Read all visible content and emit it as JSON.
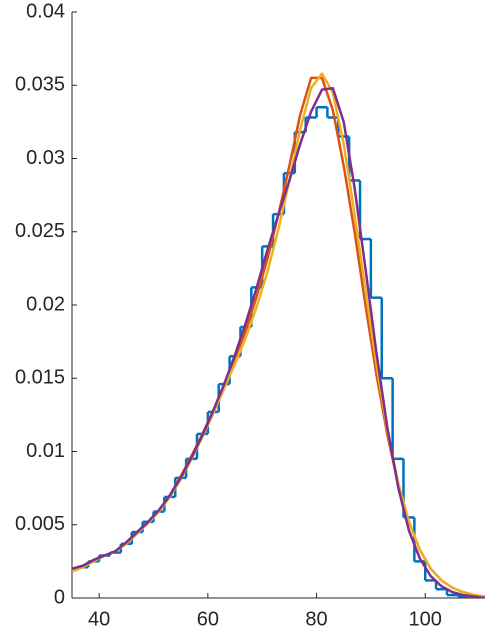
{
  "chart_data": {
    "type": "line",
    "x": [
      35,
      37,
      39,
      41,
      43,
      45,
      47,
      49,
      51,
      53,
      55,
      57,
      59,
      61,
      63,
      65,
      67,
      69,
      71,
      73,
      75,
      77,
      79,
      81,
      83,
      85,
      87,
      89,
      91,
      93,
      95,
      97,
      99,
      101,
      103,
      105,
      107,
      109,
      111
    ],
    "series": [
      {
        "color": "#0072BD",
        "style": "stairs",
        "values": [
          0.002,
          0.0021,
          0.0025,
          0.0029,
          0.0031,
          0.0037,
          0.0045,
          0.0052,
          0.0059,
          0.0069,
          0.0082,
          0.0095,
          0.0112,
          0.0127,
          0.0146,
          0.0165,
          0.0185,
          0.0212,
          0.024,
          0.0262,
          0.029,
          0.0318,
          0.0328,
          0.0335,
          0.0328,
          0.0315,
          0.0285,
          0.0245,
          0.0205,
          0.015,
          0.0095,
          0.0055,
          0.0025,
          0.0012,
          0.0006,
          0.0002,
          0.0001,
          0.0,
          0.0
        ]
      },
      {
        "color": "#D95319",
        "values": [
          0.002,
          0.0022,
          0.0026,
          0.0029,
          0.0032,
          0.0038,
          0.0045,
          0.0052,
          0.006,
          0.007,
          0.0083,
          0.0097,
          0.0112,
          0.0128,
          0.0145,
          0.0163,
          0.0183,
          0.0206,
          0.0232,
          0.0262,
          0.0295,
          0.033,
          0.0355,
          0.0355,
          0.0333,
          0.0295,
          0.025,
          0.02,
          0.0153,
          0.0112,
          0.0078,
          0.0052,
          0.0033,
          0.002,
          0.0012,
          0.0007,
          0.0004,
          0.0002,
          0.0001
        ]
      },
      {
        "color": "#EDB120",
        "values": [
          0.0018,
          0.0021,
          0.0025,
          0.0029,
          0.0032,
          0.0037,
          0.0044,
          0.0051,
          0.0059,
          0.0069,
          0.0081,
          0.0095,
          0.011,
          0.0126,
          0.0143,
          0.016,
          0.0178,
          0.0199,
          0.0223,
          0.0252,
          0.0285,
          0.032,
          0.0348,
          0.0358,
          0.0345,
          0.031,
          0.0262,
          0.021,
          0.016,
          0.0115,
          0.0079,
          0.0052,
          0.0033,
          0.002,
          0.0012,
          0.0007,
          0.0004,
          0.0002,
          0.0001
        ]
      },
      {
        "color": "#7E2F8E",
        "values": [
          0.002,
          0.0022,
          0.0026,
          0.0029,
          0.0032,
          0.0038,
          0.0045,
          0.0052,
          0.006,
          0.007,
          0.0082,
          0.0096,
          0.0111,
          0.0128,
          0.0146,
          0.0166,
          0.0188,
          0.0212,
          0.0238,
          0.0262,
          0.0285,
          0.031,
          0.0332,
          0.0347,
          0.0348,
          0.0325,
          0.028,
          0.0225,
          0.0168,
          0.0117,
          0.0076,
          0.0046,
          0.0027,
          0.0015,
          0.0008,
          0.0004,
          0.0002,
          0.0001,
          0.0
        ]
      }
    ],
    "xlim": [
      35,
      111
    ],
    "xticks": [
      40,
      60,
      80,
      100
    ],
    "ylim": [
      0,
      0.04
    ],
    "yticks": [
      0,
      0.005,
      0.01,
      0.015,
      0.02,
      0.025,
      0.03,
      0.035,
      0.04
    ]
  }
}
